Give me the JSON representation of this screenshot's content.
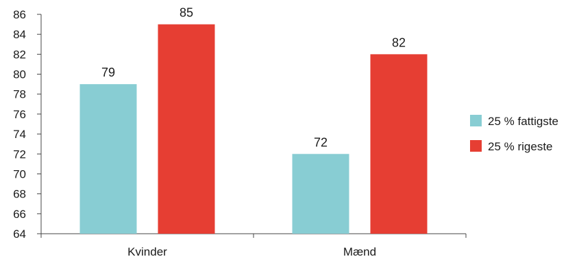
{
  "chart_data": {
    "type": "bar",
    "title": "",
    "xlabel": "",
    "ylabel": "",
    "categories": [
      "Kvinder",
      "Mænd"
    ],
    "series": [
      {
        "name": "25 % fattigste",
        "values": [
          79,
          72
        ],
        "color": "#88cdd3"
      },
      {
        "name": "25 % rigeste",
        "values": [
          85,
          82
        ],
        "color": "#e63e33"
      }
    ],
    "data_labels": [
      [
        "79",
        "72"
      ],
      [
        "85",
        "82"
      ]
    ],
    "ylim": [
      64,
      86
    ],
    "yticks": [
      64,
      66,
      68,
      70,
      72,
      74,
      76,
      78,
      80,
      82,
      84,
      86
    ],
    "grid": false,
    "legend_position": "right"
  }
}
